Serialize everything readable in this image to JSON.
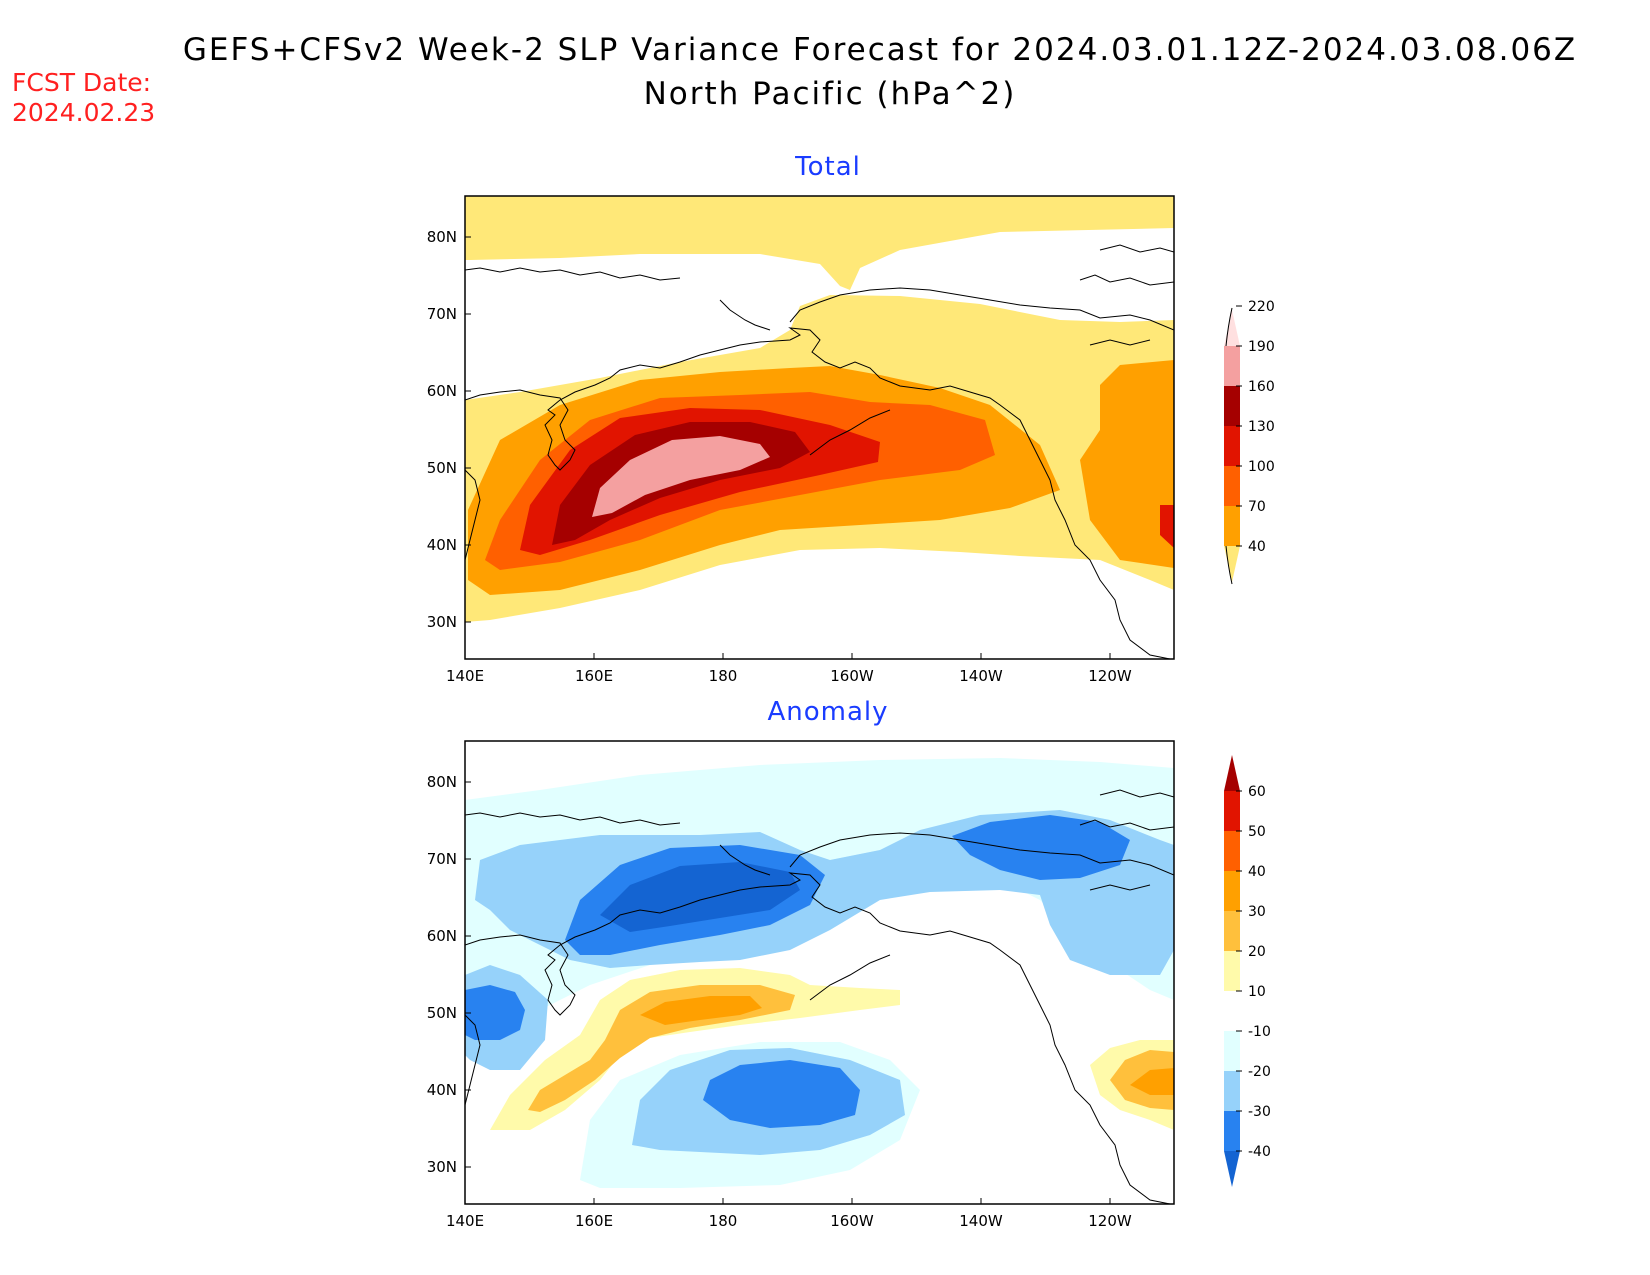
{
  "header": {
    "title_line1": "GEFS+CFSv2 Week-2 SLP Variance Forecast for 2024.03.01.12Z-2024.03.08.06Z",
    "title_line2": "North Pacific (hPa^2)",
    "fcst_label": "FCST Date:",
    "fcst_value": "2024.02.23"
  },
  "axes": {
    "lon_ticks": [
      "140E",
      "160E",
      "180",
      "160W",
      "140W",
      "120W"
    ],
    "lat_ticks": [
      "30N",
      "40N",
      "50N",
      "60N",
      "70N",
      "80N"
    ]
  },
  "panels": [
    {
      "title": "Total",
      "colorbar": {
        "labels": [
          "40",
          "70",
          "100",
          "130",
          "160",
          "190",
          "220"
        ],
        "colors": [
          "#ffe878",
          "#ffa000",
          "#ff6000",
          "#e11400",
          "#a50000",
          "#f4a0a0",
          "#ffe0e0"
        ]
      }
    },
    {
      "title": "Anomaly",
      "colorbar": {
        "labels": [
          "-40",
          "-30",
          "-20",
          "-10",
          "10",
          "20",
          "30",
          "40",
          "50",
          "60"
        ],
        "colors": [
          "#1464d2",
          "#2882f0",
          "#96d2fa",
          "#e1ffff",
          "#ffffff",
          "#fffaaa",
          "#ffc03c",
          "#ffa000",
          "#ff6000",
          "#e11400",
          "#a50000"
        ]
      }
    }
  ]
}
